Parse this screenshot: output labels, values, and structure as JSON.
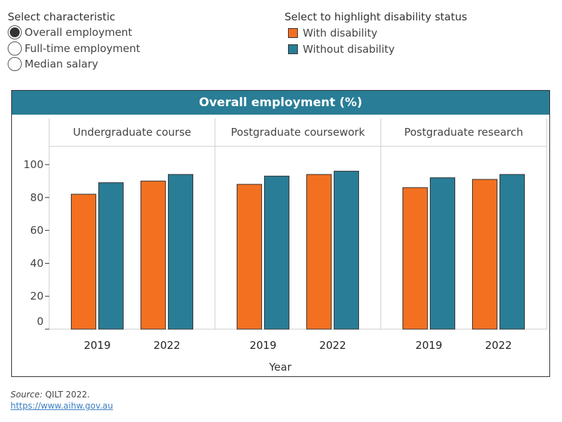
{
  "controls": {
    "characteristic_title": "Select characteristic",
    "options": [
      {
        "label": "Overall employment",
        "selected": true
      },
      {
        "label": "Full-time employment",
        "selected": false
      },
      {
        "label": "Median salary",
        "selected": false
      }
    ],
    "highlight_title": "Select to highlight disability status",
    "legend": [
      {
        "label": "With disability",
        "color": "#f37021"
      },
      {
        "label": "Without disability",
        "color": "#297d96"
      }
    ]
  },
  "chart_data": {
    "type": "bar",
    "title": "Overall employment (%)",
    "xlabel": "Year",
    "ylabel": "",
    "ylim": [
      0,
      100
    ],
    "yticks": [
      "0",
      "20",
      "40",
      "60",
      "80",
      "100"
    ],
    "panels": [
      {
        "name": "Undergraduate course",
        "categories": [
          "2019",
          "2022"
        ],
        "series": [
          {
            "name": "With disability",
            "values": [
              82,
              90
            ]
          },
          {
            "name": "Without disability",
            "values": [
              89,
              94
            ]
          }
        ]
      },
      {
        "name": "Postgraduate coursework",
        "categories": [
          "2019",
          "2022"
        ],
        "series": [
          {
            "name": "With disability",
            "values": [
              88,
              94
            ]
          },
          {
            "name": "Without disability",
            "values": [
              93,
              96
            ]
          }
        ]
      },
      {
        "name": "Postgraduate research",
        "categories": [
          "2019",
          "2022"
        ],
        "series": [
          {
            "name": "With disability",
            "values": [
              86,
              91
            ]
          },
          {
            "name": "Without disability",
            "values": [
              92,
              94
            ]
          }
        ]
      }
    ],
    "grid": false
  },
  "footer": {
    "source_label": "Source:",
    "source_text": " QILT 2022.",
    "link": "https://www.aihw.gov.au"
  }
}
